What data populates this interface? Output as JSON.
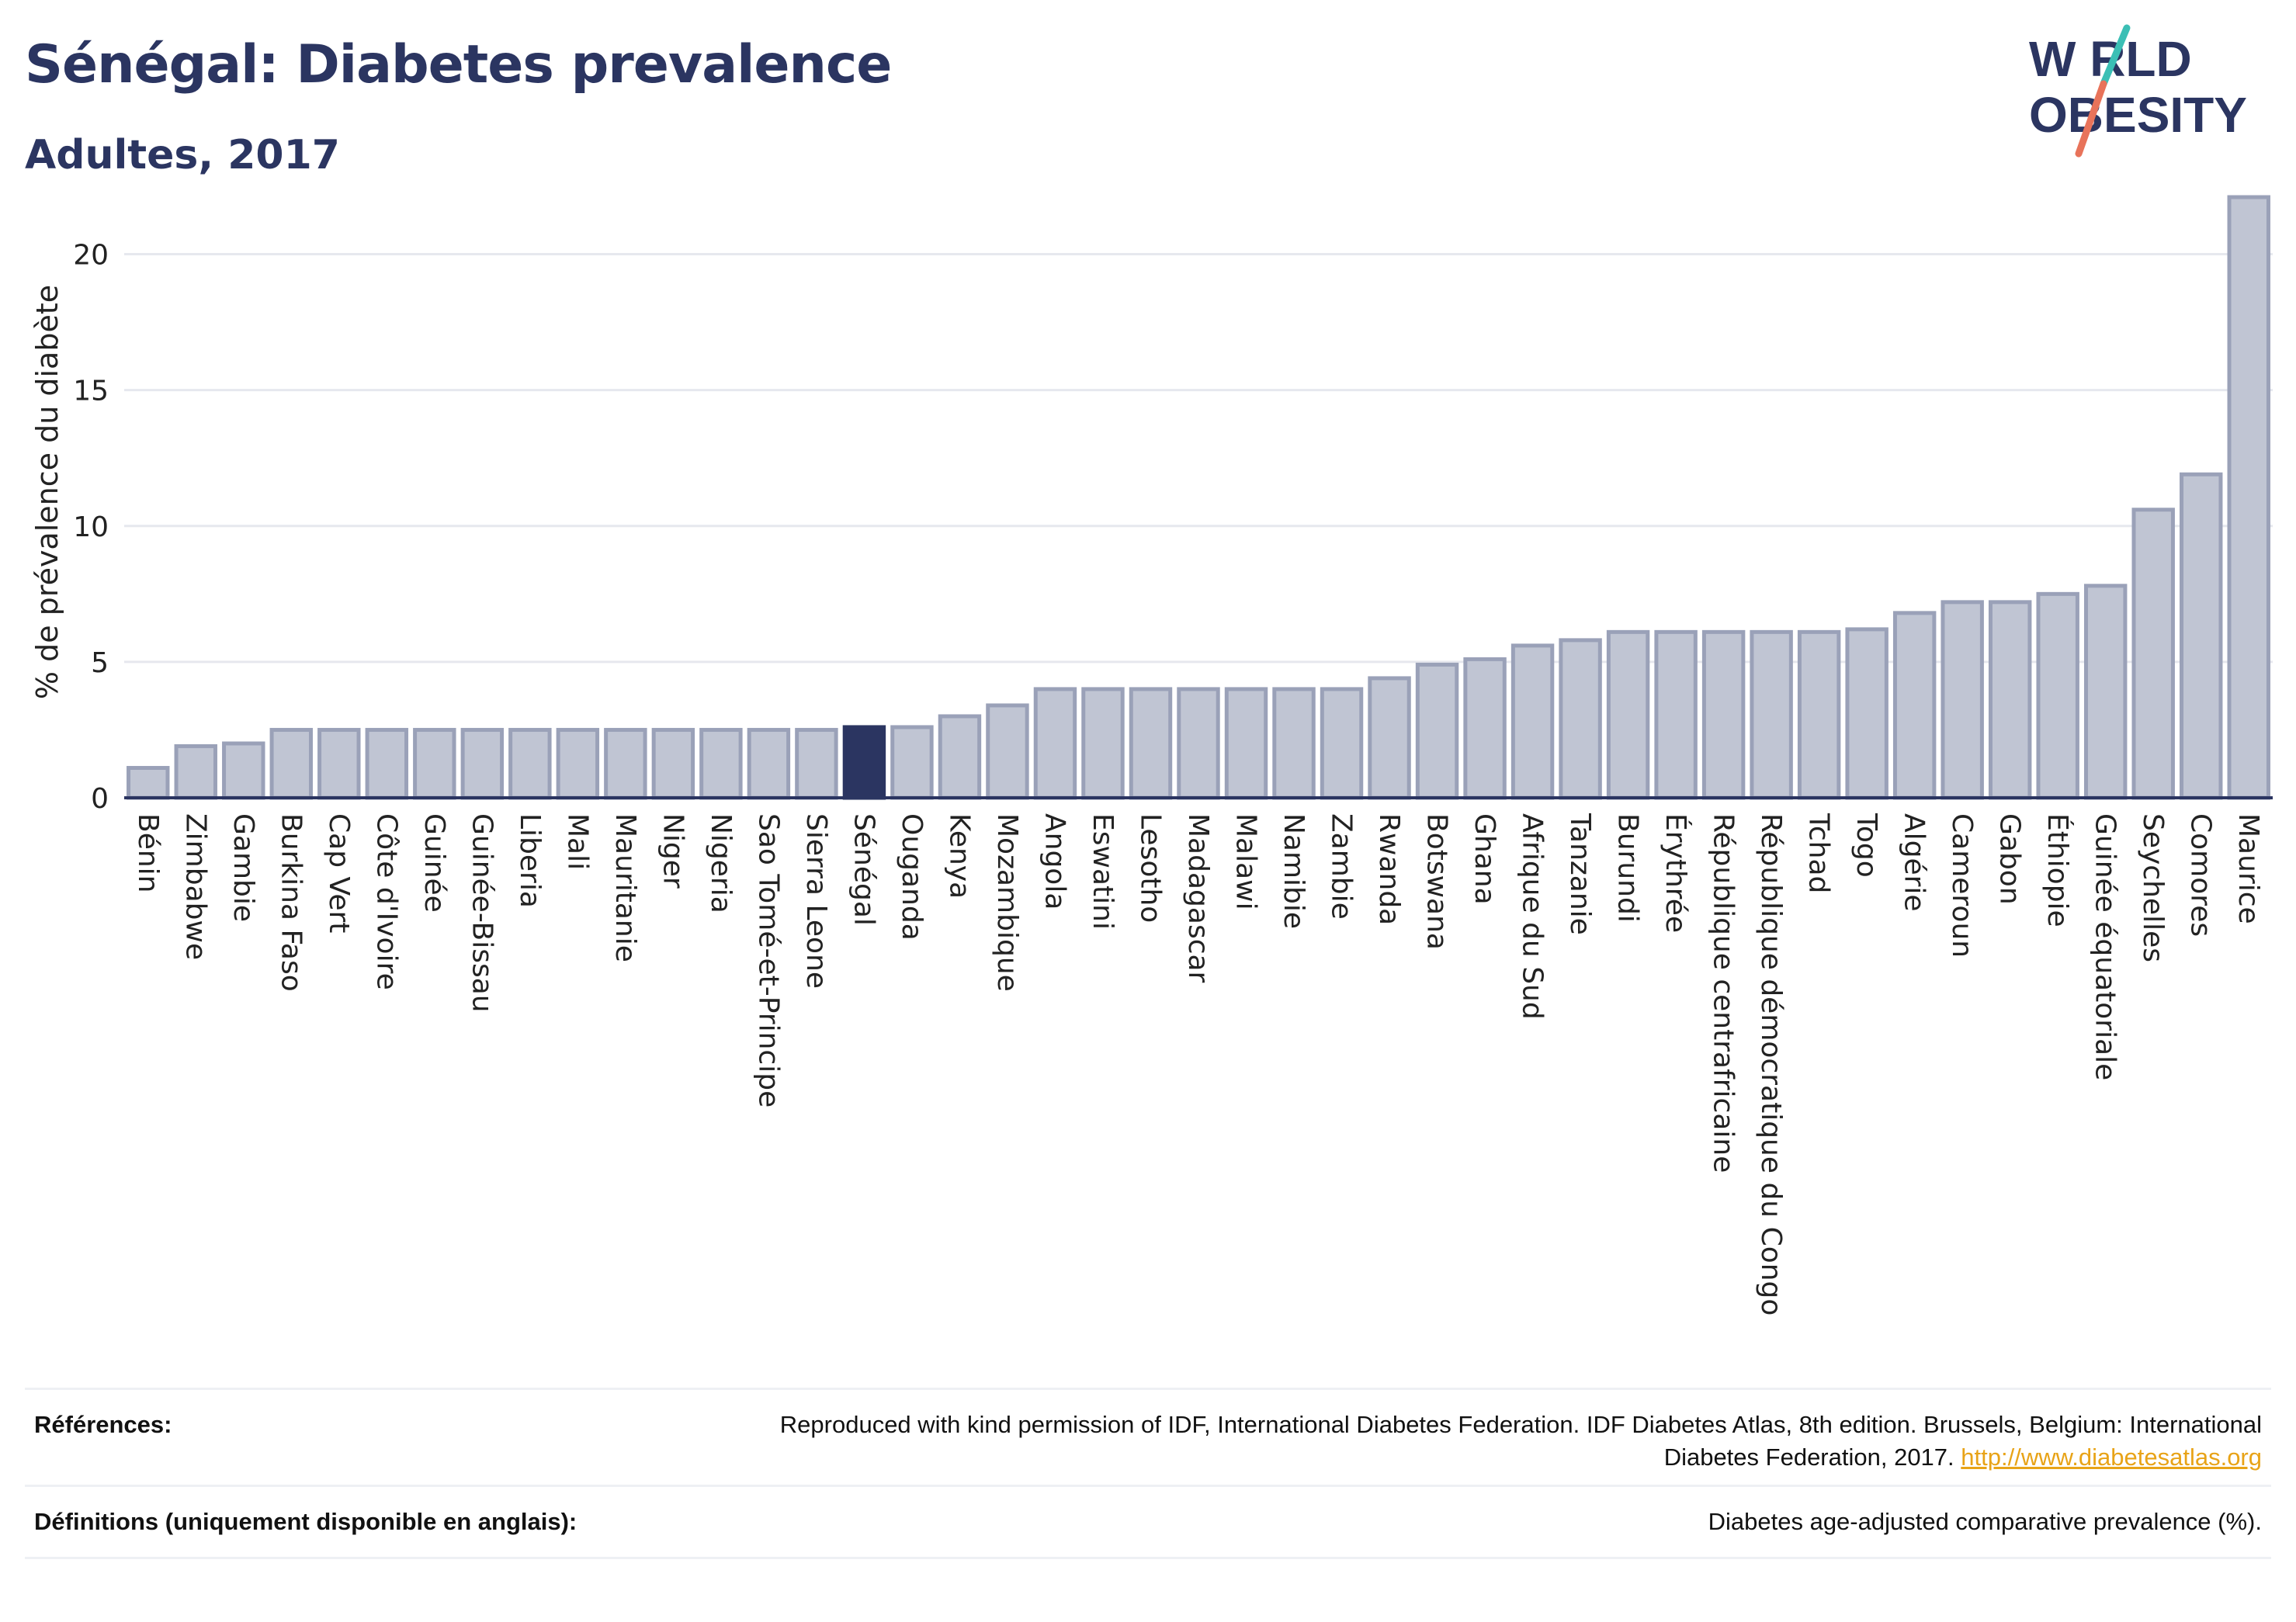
{
  "header": {
    "title": "Sénégal: Diabetes prevalence",
    "subtitle": "Adultes, 2017"
  },
  "logo": {
    "line1": "W RLD",
    "line2": "OBESITY",
    "colors": {
      "text": "#2b3561",
      "accent_teal": "#3bbfb5",
      "accent_red": "#e8735a"
    }
  },
  "colors": {
    "bar": "#c0c5d3",
    "bar_stroke": "#9aa1b8",
    "highlight": "#2b3561",
    "axis": "#2b3561",
    "grid": "#e6e8ee"
  },
  "chart_data": {
    "type": "bar",
    "title": "",
    "ylabel": "% de prévalence du diabète",
    "xlabel": "",
    "ylim": [
      0,
      22.5
    ],
    "yticks": [
      0,
      5,
      10,
      15,
      20
    ],
    "grid": true,
    "highlight": "Sénégal",
    "categories": [
      "Bénin",
      "Zimbabwe",
      "Gambie",
      "Burkina Faso",
      "Cap Vert",
      "Côte d'Ivoire",
      "Guinée",
      "Guinée-Bissau",
      "Liberia",
      "Mali",
      "Mauritanie",
      "Niger",
      "Nigeria",
      "Sao Tomé-et-Principe",
      "Sierra Leone",
      "Sénégal",
      "Ouganda",
      "Kenya",
      "Mozambique",
      "Angola",
      "Eswatini",
      "Lesotho",
      "Madagascar",
      "Malawi",
      "Namibie",
      "Zambie",
      "Rwanda",
      "Botswana",
      "Ghana",
      "Afrique du Sud",
      "Tanzanie",
      "Burundi",
      "Érythrée",
      "République centrafricaine",
      "République démocratique du Congo",
      "Tchad",
      "Togo",
      "Algérie",
      "Cameroun",
      "Gabon",
      "Éthiopie",
      "Guinée équatoriale",
      "Seychelles",
      "Comores",
      "Maurice"
    ],
    "values": [
      1.1,
      1.9,
      2.0,
      2.5,
      2.5,
      2.5,
      2.5,
      2.5,
      2.5,
      2.5,
      2.5,
      2.5,
      2.5,
      2.5,
      2.5,
      2.6,
      2.6,
      3.0,
      3.4,
      4.0,
      4.0,
      4.0,
      4.0,
      4.0,
      4.0,
      4.0,
      4.4,
      4.9,
      5.1,
      5.6,
      5.8,
      6.1,
      6.1,
      6.1,
      6.1,
      6.1,
      6.2,
      6.8,
      7.2,
      7.2,
      7.5,
      7.8,
      10.6,
      11.9,
      22.1
    ]
  },
  "footer": {
    "references_label": "Références:",
    "references_text": "Reproduced with kind permission of IDF, International Diabetes Federation. IDF Diabetes Atlas, 8th edition. Brussels, Belgium: International Diabetes Federation, 2017. ",
    "references_link": "http://www.diabetesatlas.org",
    "definitions_label": "Définitions (uniquement disponible en anglais):",
    "definitions_text": "Diabetes age-adjusted comparative prevalence (%)."
  }
}
